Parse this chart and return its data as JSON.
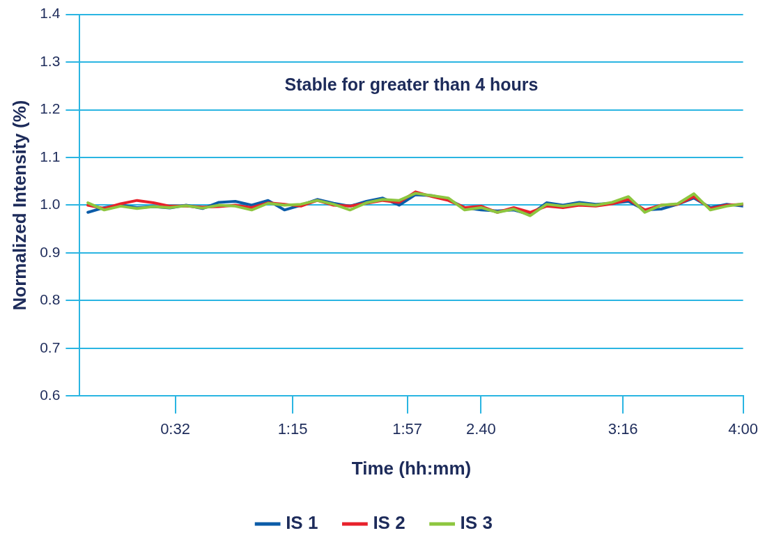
{
  "chart_data": {
    "type": "line",
    "xlabel": "Time (hh:mm)",
    "ylabel": "Normalized Intensity (%)",
    "annotations": [
      "Stable for greater than 4 hours"
    ],
    "x": [
      0,
      0.1,
      0.2,
      0.3,
      0.4,
      0.5,
      0.6,
      0.7,
      0.8,
      0.9,
      1.0,
      1.1,
      1.2,
      1.3,
      1.4,
      1.5,
      1.6,
      1.7,
      1.8,
      1.9,
      2.0,
      2.1,
      2.2,
      2.3,
      2.4,
      2.5,
      2.6,
      2.7,
      2.8,
      2.9,
      3.0,
      3.1,
      3.2,
      3.3,
      3.4,
      3.5,
      3.6,
      3.7,
      3.8,
      3.9,
      4.0
    ],
    "series": [
      {
        "name": "IS 1",
        "color": "#0b5ca8",
        "values": [
          0.985,
          0.995,
          1.0,
          0.995,
          0.997,
          0.994,
          1.0,
          0.993,
          1.006,
          1.008,
          1.0,
          1.01,
          0.99,
          1.0,
          1.012,
          1.004,
          0.998,
          1.008,
          1.015,
          1.0,
          1.022,
          1.02,
          1.012,
          0.995,
          0.99,
          0.988,
          0.99,
          0.98,
          1.005,
          1.0,
          1.006,
          1.002,
          1.004,
          1.008,
          0.99,
          0.992,
          1.002,
          1.015,
          0.995,
          1.002,
          0.998
        ]
      },
      {
        "name": "IS 2",
        "color": "#e8212b",
        "values": [
          1.0,
          0.993,
          1.003,
          1.01,
          1.005,
          0.998,
          0.998,
          0.996,
          0.997,
          1.0,
          0.995,
          1.005,
          1.002,
          0.998,
          1.01,
          1.0,
          0.998,
          1.004,
          1.01,
          1.006,
          1.028,
          1.018,
          1.01,
          0.995,
          0.998,
          0.985,
          0.995,
          0.985,
          0.998,
          0.995,
          1.0,
          0.998,
          1.003,
          1.012,
          0.99,
          1.0,
          1.002,
          1.018,
          0.993,
          1.0,
          1.002
        ]
      },
      {
        "name": "IS 3",
        "color": "#8dc63f",
        "values": [
          1.005,
          0.99,
          0.998,
          0.993,
          0.997,
          0.995,
          0.999,
          0.994,
          1.0,
          0.998,
          0.99,
          1.004,
          1.0,
          1.002,
          1.01,
          1.002,
          0.99,
          1.005,
          1.012,
          1.01,
          1.025,
          1.02,
          1.015,
          0.99,
          0.995,
          0.985,
          0.992,
          0.978,
          1.002,
          0.998,
          1.003,
          1.0,
          1.006,
          1.018,
          0.985,
          1.0,
          1.003,
          1.024,
          0.99,
          0.998,
          1.003
        ]
      }
    ],
    "xlim": [
      -0.05,
      4
    ],
    "xticks": [
      {
        "value": 0.5333,
        "label": "0:32"
      },
      {
        "value": 1.25,
        "label": "1:15"
      },
      {
        "value": 1.95,
        "label": "1:57"
      },
      {
        "value": 2.4,
        "label": "2.40"
      },
      {
        "value": 3.2667,
        "label": "3:16"
      },
      {
        "value": 4,
        "label": "4:00"
      }
    ],
    "ylim": [
      0.6,
      1.4
    ],
    "yticks": [
      0.6,
      0.7,
      0.8,
      0.9,
      {
        "value": 1,
        "label": "1.0"
      },
      1.1,
      1.2,
      1.3,
      1.4
    ],
    "grid": "y",
    "legend": "bottom",
    "marker": "none",
    "line_style": "solid"
  }
}
